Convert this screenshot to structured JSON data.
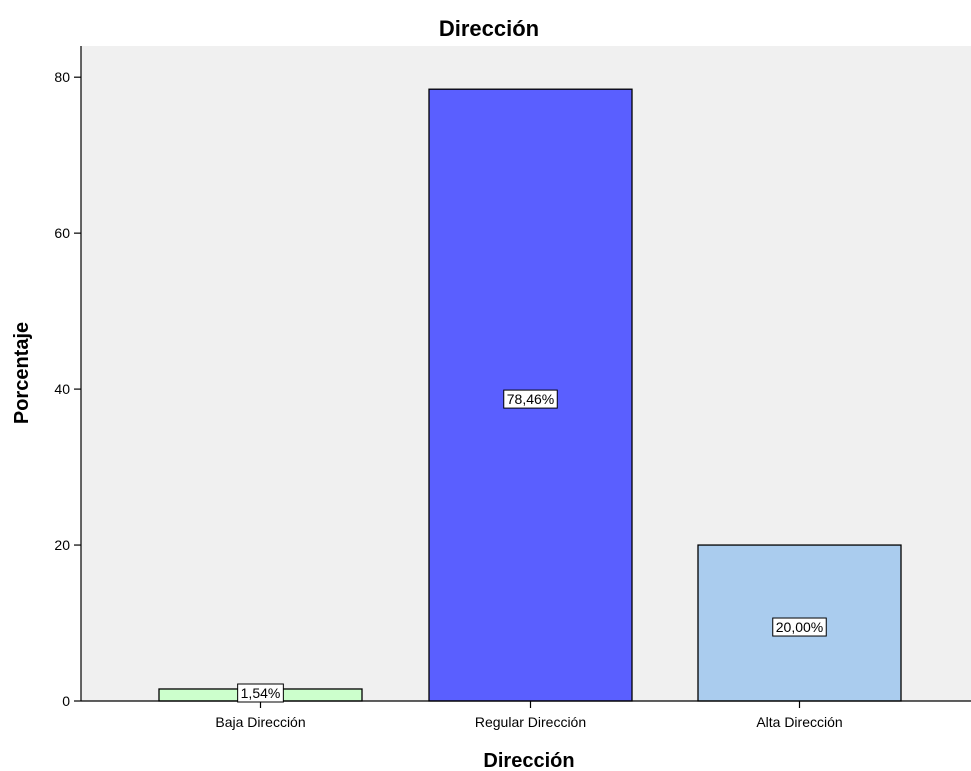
{
  "chart_data": {
    "type": "bar",
    "title": "Dirección",
    "xlabel": "Dirección",
    "ylabel": "Porcentaje",
    "categories": [
      "Baja Dirección",
      "Regular Dirección",
      "Alta Dirección"
    ],
    "values": [
      1.54,
      78.46,
      20.0
    ],
    "data_labels": [
      "1,54%",
      "78,46%",
      "20,00%"
    ],
    "colors": [
      "#CCFFCC",
      "#5A5FFF",
      "#AACCEE"
    ],
    "ylim": [
      0,
      84
    ],
    "yticks": [
      0,
      20,
      40,
      60,
      80
    ],
    "ytick_labels": [
      "0",
      "20",
      "40",
      "60",
      "80"
    ],
    "plot_background": "#F0F0F0",
    "grid": false,
    "legend": "none"
  }
}
